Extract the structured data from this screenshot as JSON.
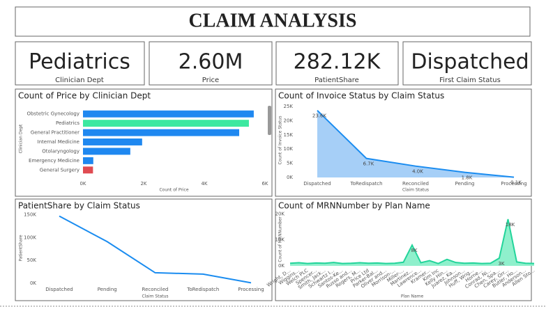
{
  "title": "CLAIM ANALYSIS",
  "cards": [
    {
      "value": "Pediatrics",
      "label": "Clinician Dept"
    },
    {
      "value": "2.60M",
      "label": "Price"
    },
    {
      "value": "282.12K",
      "label": "PatientShare"
    },
    {
      "value": "Dispatched",
      "label": "First Claim Status"
    }
  ],
  "chart_data": [
    {
      "type": "hbar",
      "title": "Count of Price by Clinician Dept",
      "x_label": "Count of Price",
      "y_label": "Clinician Dept",
      "categories": [
        "Obstetric Gynecology",
        "Pediatrics",
        "General Practitioner",
        "Internal Medicine",
        "Otolaryngology",
        "Emergency Medicine",
        "General Surgery"
      ],
      "values": [
        5630,
        5470,
        5150,
        1950,
        1560,
        340,
        330
      ],
      "colors": [
        "#1f88f0",
        "#3ce8a0",
        "#1f88f0",
        "#1f88f0",
        "#1f88f0",
        "#1f88f0",
        "#e04b52"
      ],
      "xlim": [
        0,
        6000
      ],
      "xticks": [
        {
          "value": 0,
          "label": "0K"
        },
        {
          "value": 2000,
          "label": "2K"
        },
        {
          "value": 4000,
          "label": "4K"
        },
        {
          "value": 6000,
          "label": "6K"
        }
      ]
    },
    {
      "type": "area",
      "title": "Count of Invoice Status by Claim Status",
      "x_label": "Claim Status",
      "y_label": "Count of Invoice Status",
      "categories": [
        "Dispatched",
        "ToRedispatch",
        "Reconciled",
        "Pending",
        "Processing"
      ],
      "values": [
        23600,
        6700,
        4000,
        1800,
        100
      ],
      "value_labels": [
        "23.6K",
        "6.7K",
        "4.0K",
        "1.8K",
        "0.1K"
      ],
      "color": "#1a8cf0",
      "fill": "#a6cff7",
      "ylim": [
        0,
        25000
      ],
      "yticks": [
        {
          "value": 0,
          "label": "0K"
        },
        {
          "value": 5000,
          "label": "5K"
        },
        {
          "value": 10000,
          "label": "10K"
        },
        {
          "value": 15000,
          "label": "15K"
        },
        {
          "value": 20000,
          "label": "20K"
        },
        {
          "value": 25000,
          "label": "25K"
        }
      ]
    },
    {
      "type": "line",
      "title": "PatientShare by Claim Status",
      "x_label": "Claim Status",
      "y_label": "PatientShare",
      "categories": [
        "Dispatched",
        "Pending",
        "Reconciled",
        "ToRedispatch",
        "Processing"
      ],
      "values": [
        147000,
        91000,
        23000,
        20000,
        1000
      ],
      "color": "#1a8cf0",
      "ylim": [
        0,
        160000
      ],
      "yticks": [
        {
          "value": 0,
          "label": "0K"
        },
        {
          "value": 50000,
          "label": "50K"
        },
        {
          "value": 100000,
          "label": "100K"
        },
        {
          "value": 150000,
          "label": "150K"
        }
      ]
    },
    {
      "type": "area",
      "title": "Count of MRNNumber by Plan Name",
      "x_label": "Plan Name",
      "y_label": "Count of MRNNumber",
      "categories": [
        "Wright, D...",
        "Wiggins...",
        "Welch PLC",
        "Spencer...",
        "Smith, Jack...",
        "Schwartz I...",
        "Santos-Ke...",
        "Russo and...",
        "Rogers, M...",
        "Price Ltd",
        "Parker-Bal...",
        "Oliver and...",
        "Morrison-...",
        "Miller-...",
        "Martinez...",
        "Lawrence...",
        "Kramer...",
        "Kim Inc",
        "Kelly Hin...",
        "Juarez, Ka...",
        "Johnson...",
        "Huff, Wrig...",
        "Horne...",
        "Conrad, Ni...",
        "Chen, Spa...",
        "Carey, Orr...",
        "Butler, Ho...",
        "Anderson...",
        "Allen Sto..."
      ],
      "values": [
        1000,
        1200,
        900,
        1100,
        1000,
        1300,
        900,
        1000,
        1200,
        1000,
        1100,
        900,
        1000,
        1400,
        8000,
        1200,
        2000,
        900,
        2500,
        1300,
        1000,
        1100,
        900,
        1000,
        3000,
        18000,
        1500,
        1000,
        900
      ],
      "value_labels": [
        null,
        null,
        null,
        null,
        null,
        null,
        null,
        null,
        null,
        null,
        null,
        null,
        null,
        null,
        "8K",
        null,
        null,
        null,
        null,
        null,
        null,
        null,
        null,
        null,
        "3K",
        "18K",
        null,
        null,
        null
      ],
      "color": "#22d49a",
      "fill": "#8ff0cc",
      "ylim": [
        0,
        22000
      ],
      "yticks": [
        {
          "value": 0,
          "label": "0K"
        },
        {
          "value": 10000,
          "label": "10K"
        },
        {
          "value": 20000,
          "label": "20K"
        }
      ]
    }
  ]
}
